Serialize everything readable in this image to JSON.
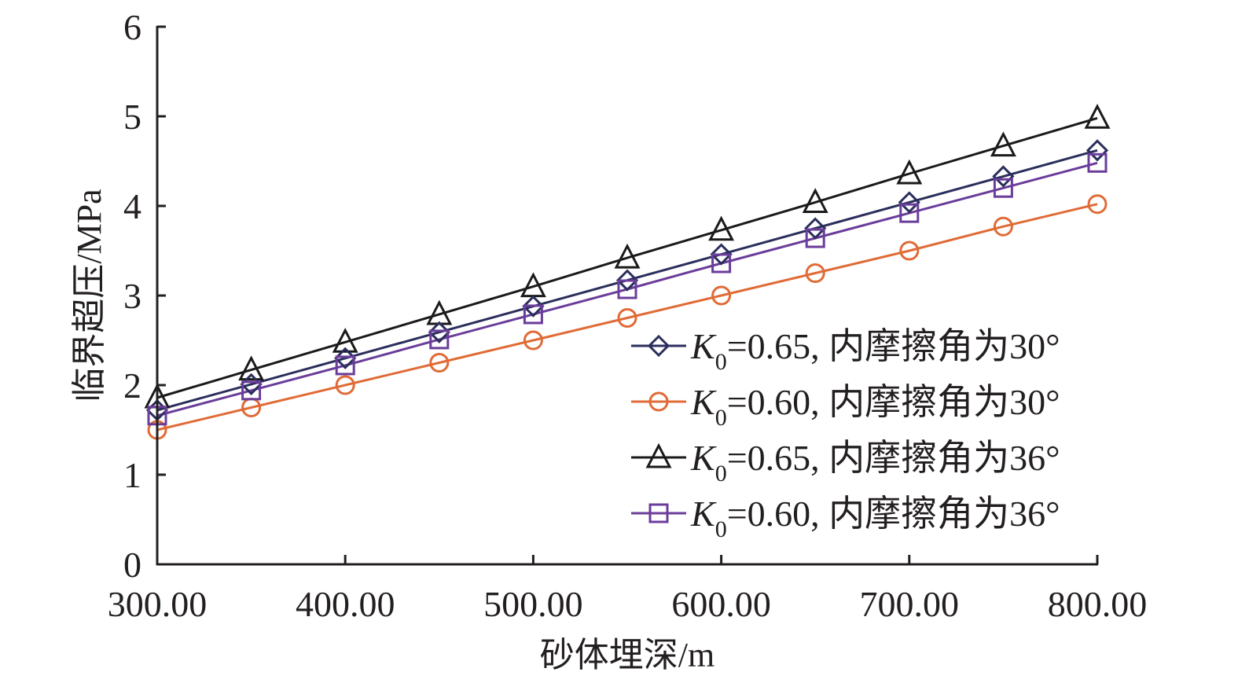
{
  "chart_data": {
    "type": "line",
    "title": "",
    "xlabel": "砂体埋深/m",
    "ylabel": "临界超压/MPa",
    "xlim": [
      300,
      800
    ],
    "ylim": [
      0,
      6
    ],
    "grid": false,
    "x": [
      300,
      350,
      400,
      450,
      500,
      550,
      600,
      650,
      700,
      750,
      800
    ],
    "x_tick_values": [
      300,
      400,
      500,
      600,
      700,
      800
    ],
    "x_tick_labels": [
      "300.00",
      "400.00",
      "500.00",
      "600.00",
      "700.00",
      "800.00"
    ],
    "y_tick_values": [
      0,
      1,
      2,
      3,
      4,
      5,
      6
    ],
    "y_tick_labels": [
      "0",
      "1",
      "2",
      "3",
      "4",
      "5",
      "6"
    ],
    "legend_position": "bottom-right",
    "series": [
      {
        "name": "K0=0.65, 内摩擦角为30°",
        "legend_k": "K",
        "legend_sub": "0",
        "legend_rest": "=0.65, 内摩擦角为30°",
        "marker": "diamond",
        "color": "#2b2e5c",
        "values": [
          1.72,
          2.01,
          2.3,
          2.59,
          2.88,
          3.17,
          3.46,
          3.75,
          4.04,
          4.33,
          4.62
        ]
      },
      {
        "name": "K0=0.60, 内摩擦角为30°",
        "legend_k": "K",
        "legend_sub": "0",
        "legend_rest": "=0.60, 内摩擦角为30°",
        "marker": "circle",
        "color": "#e06b36",
        "values": [
          1.5,
          1.75,
          2.0,
          2.25,
          2.5,
          2.75,
          3.0,
          3.25,
          3.5,
          3.77,
          4.02
        ]
      },
      {
        "name": "K0=0.65, 内摩擦角为36°",
        "legend_k": "K",
        "legend_sub": "0",
        "legend_rest": "=0.65, 内摩擦角为36°",
        "marker": "triangle",
        "color": "#1a1a1a",
        "values": [
          1.86,
          2.17,
          2.48,
          2.79,
          3.1,
          3.42,
          3.73,
          4.04,
          4.36,
          4.67,
          4.98
        ]
      },
      {
        "name": "K0=0.60, 内摩擦角为36°",
        "legend_k": "K",
        "legend_sub": "0",
        "legend_rest": "=0.60, 内摩擦角为36°",
        "marker": "square",
        "color": "#6a3d9a",
        "values": [
          1.66,
          1.94,
          2.22,
          2.51,
          2.79,
          3.07,
          3.36,
          3.64,
          3.92,
          4.2,
          4.48
        ]
      }
    ]
  }
}
